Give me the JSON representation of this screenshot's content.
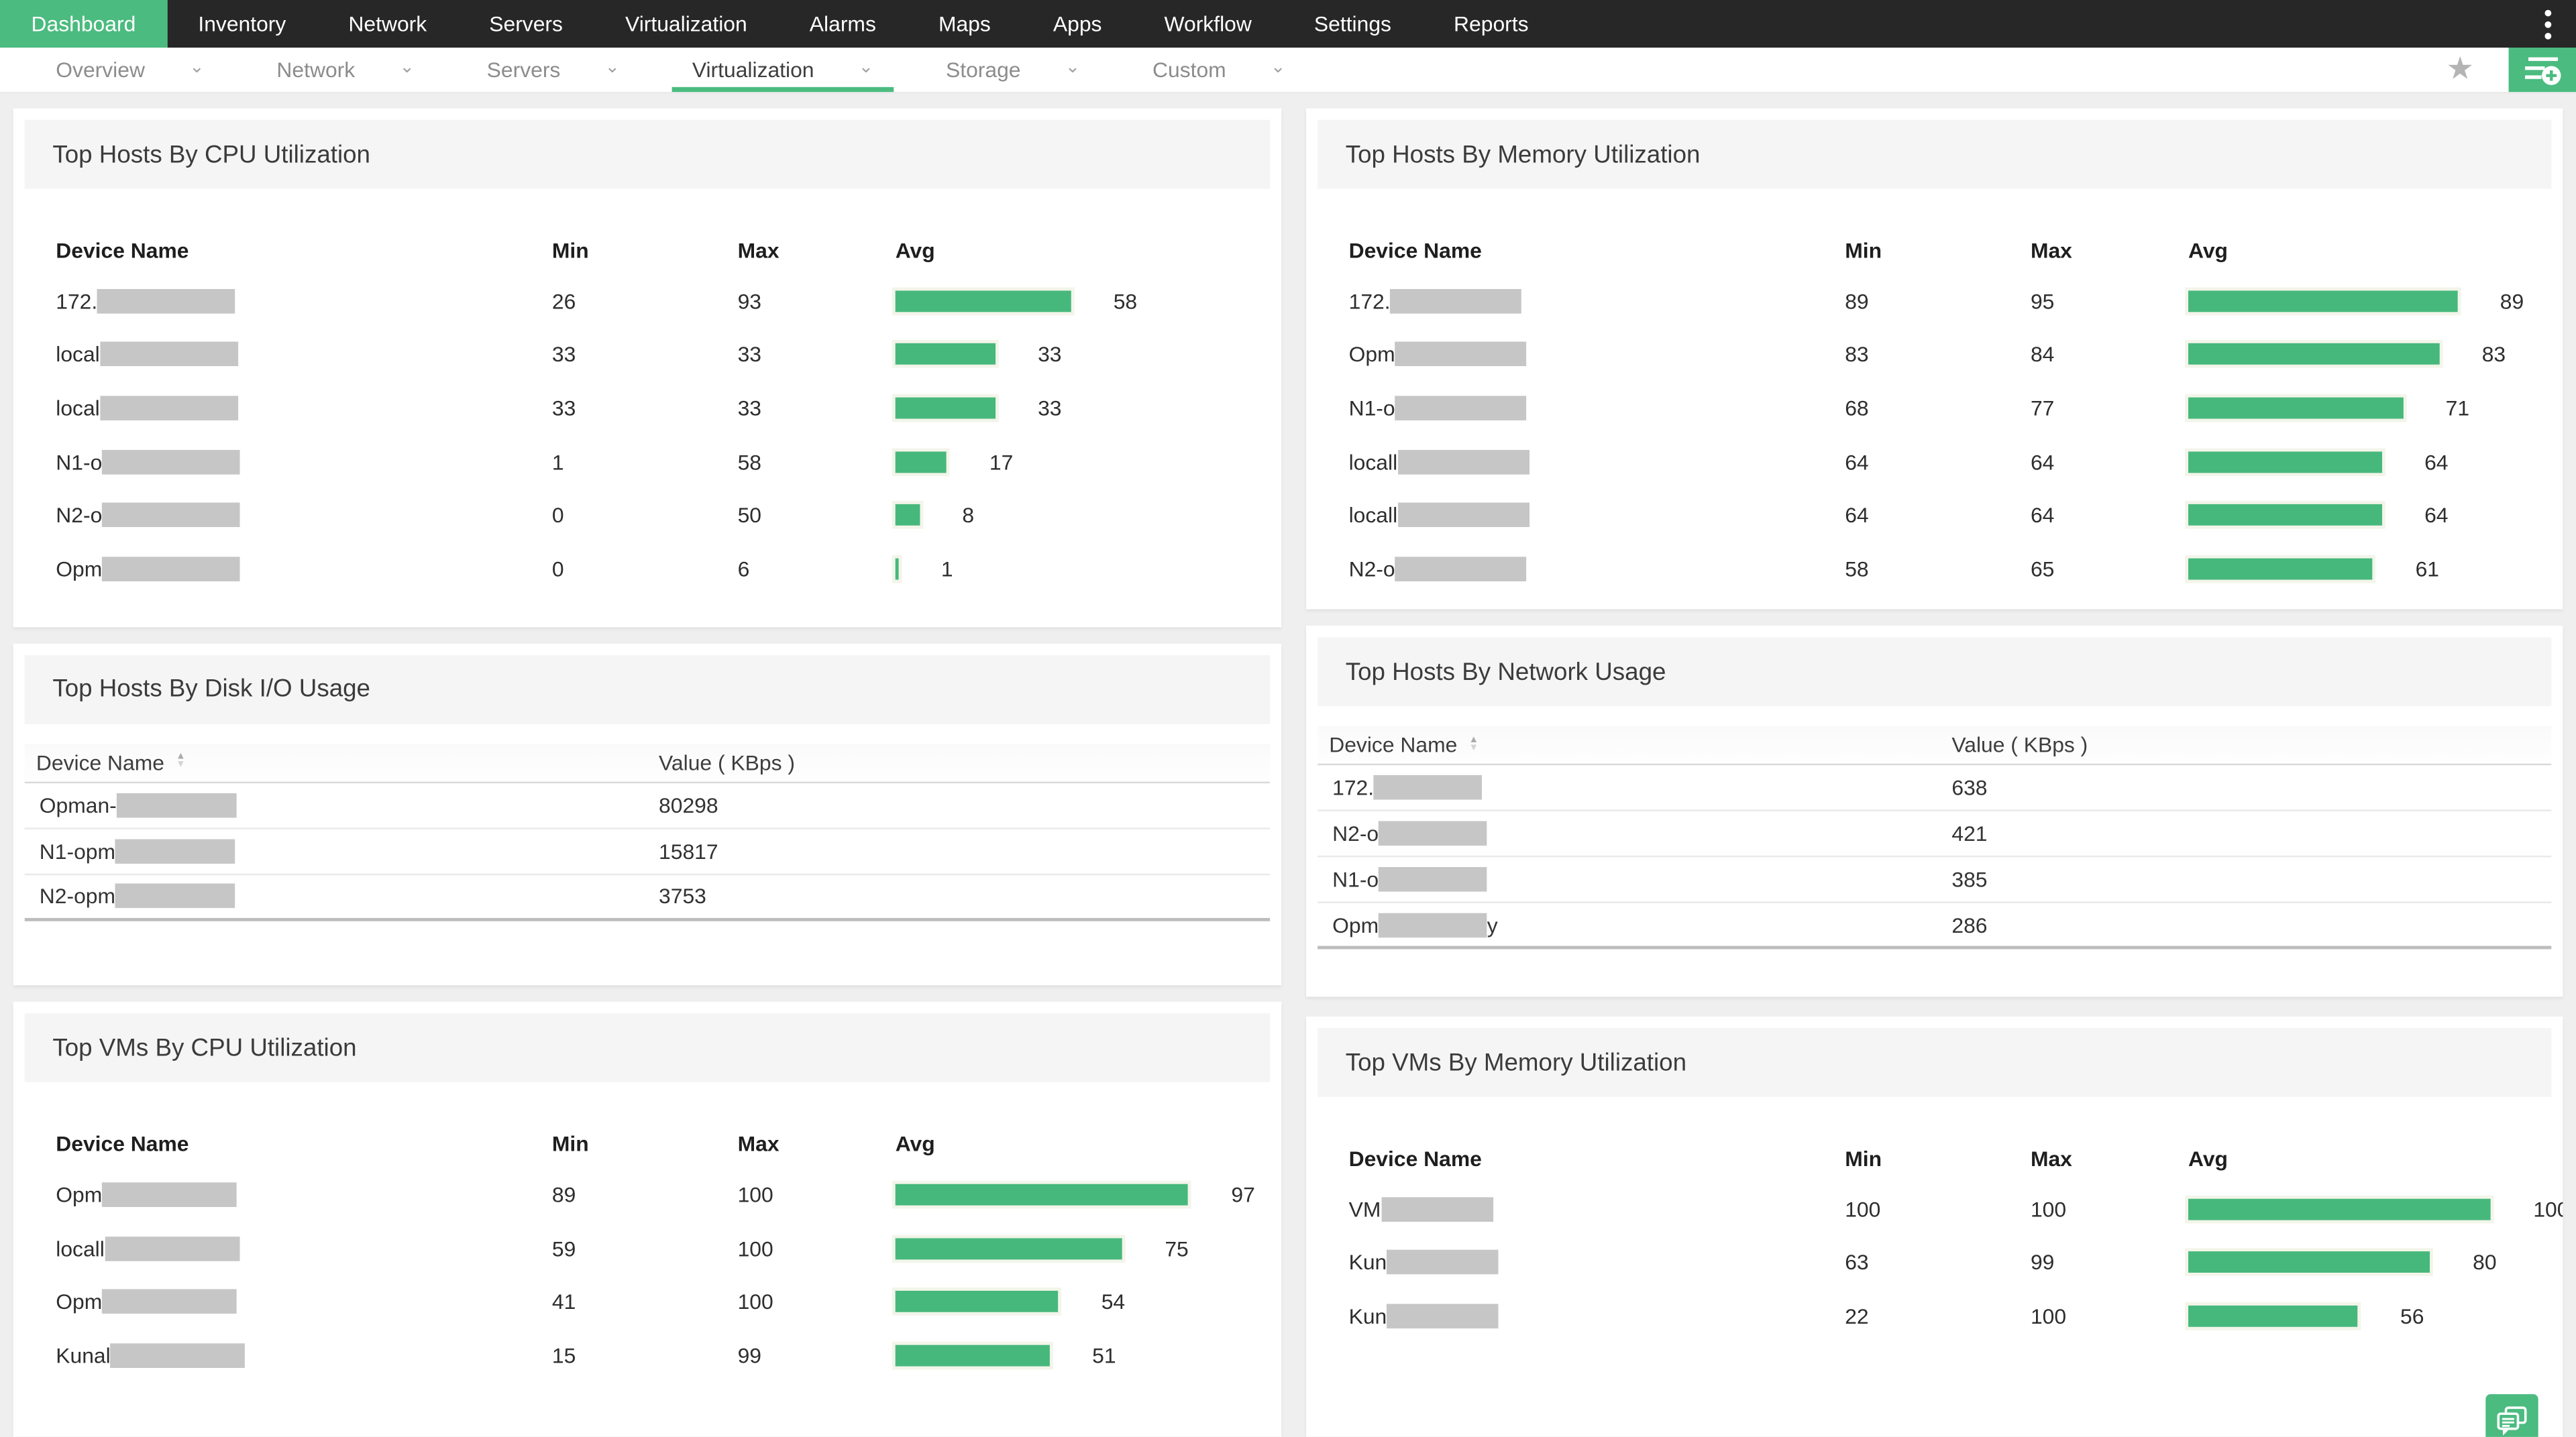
{
  "topnav": {
    "items": [
      {
        "label": "Dashboard",
        "active": true
      },
      {
        "label": "Inventory"
      },
      {
        "label": "Network"
      },
      {
        "label": "Servers"
      },
      {
        "label": "Virtualization"
      },
      {
        "label": "Alarms"
      },
      {
        "label": "Maps"
      },
      {
        "label": "Apps"
      },
      {
        "label": "Workflow"
      },
      {
        "label": "Settings"
      },
      {
        "label": "Reports"
      }
    ]
  },
  "subnav": {
    "items": [
      {
        "label": "Overview"
      },
      {
        "label": "Network"
      },
      {
        "label": "Servers"
      },
      {
        "label": "Virtualization",
        "active": true
      },
      {
        "label": "Storage"
      },
      {
        "label": "Custom"
      }
    ]
  },
  "icons": {
    "kebab-menu-icon": "vertical three dots",
    "chevron-down-icon": "⌄",
    "favorite-star-icon": "★",
    "sort-up-icon": "▲",
    "sort-down-icon": "▼",
    "add-widget-icon": "list with plus circle",
    "chat-bubbles-icon": "two speech bubbles"
  },
  "colors": {
    "nav_bg": "#272727",
    "accent_green": "#4bbb7f",
    "bar_green": "#47b87c",
    "page_bg": "#efeff0",
    "panel_band": "#f5f5f6",
    "redact_gray": "#c6c6c6"
  },
  "panels": {
    "cpu_hosts": {
      "title": "Top Hosts By CPU Utilization",
      "columns": [
        "Device Name",
        "Min",
        "Max",
        "Avg"
      ],
      "redact_w": 84,
      "rows": [
        {
          "prefix": "172.",
          "min": "26",
          "max": "93",
          "avg": 58
        },
        {
          "prefix": "local",
          "min": "33",
          "max": "33",
          "avg": 33
        },
        {
          "prefix": "local",
          "min": "33",
          "max": "33",
          "avg": 33
        },
        {
          "prefix": "N1-o",
          "min": "1",
          "max": "58",
          "avg": 17
        },
        {
          "prefix": "N2-o",
          "min": "0",
          "max": "50",
          "avg": 8
        },
        {
          "prefix": "Opm",
          "min": "0",
          "max": "6",
          "avg": 1
        }
      ]
    },
    "mem_hosts": {
      "title": "Top Hosts By Memory Utilization",
      "columns": [
        "Device Name",
        "Min",
        "Max",
        "Avg"
      ],
      "redact_w": 80,
      "rows": [
        {
          "prefix": "172.",
          "min": "89",
          "max": "95",
          "avg": 89
        },
        {
          "prefix": "Opm",
          "min": "83",
          "max": "84",
          "avg": 83
        },
        {
          "prefix": "N1-o",
          "min": "68",
          "max": "77",
          "avg": 71
        },
        {
          "prefix": "locall",
          "min": "64",
          "max": "64",
          "avg": 64
        },
        {
          "prefix": "locall",
          "min": "64",
          "max": "64",
          "avg": 64
        },
        {
          "prefix": "N2-o",
          "min": "58",
          "max": "65",
          "avg": 61
        }
      ]
    },
    "disk_hosts": {
      "title": "Top Hosts By Disk I/O Usage",
      "columns": [
        "Device Name",
        "Value ( KBps )"
      ],
      "redact_w": 73,
      "rows": [
        {
          "prefix": "Opman-",
          "value": "80298"
        },
        {
          "prefix": "N1-opm",
          "value": "15817"
        },
        {
          "prefix": "N2-opm",
          "value": "3753"
        }
      ]
    },
    "net_hosts": {
      "title": "Top Hosts By Network Usage",
      "columns": [
        "Device Name",
        "Value ( KBps )"
      ],
      "redact_w": 66,
      "rows": [
        {
          "prefix": "172.",
          "value": "638"
        },
        {
          "prefix": "N2-o",
          "value": "421"
        },
        {
          "prefix": "N1-o",
          "value": "385"
        },
        {
          "prefix": "Opm",
          "suffix": "y",
          "value": "286"
        }
      ]
    },
    "cpu_vms": {
      "title": "Top VMs By CPU Utilization",
      "columns": [
        "Device Name",
        "Min",
        "Max",
        "Avg"
      ],
      "redact_w": 82,
      "rows": [
        {
          "prefix": "Opm",
          "min": "89",
          "max": "100",
          "avg": 97
        },
        {
          "prefix": "locall",
          "min": "59",
          "max": "100",
          "avg": 75
        },
        {
          "prefix": "Opm",
          "min": "41",
          "max": "100",
          "avg": 54
        },
        {
          "prefix": "Kunal",
          "min": "15",
          "max": "99",
          "avg": 51
        }
      ]
    },
    "mem_vms": {
      "title": "Top VMs By Memory Utilization",
      "columns": [
        "Device Name",
        "Min",
        "Max",
        "Avg"
      ],
      "redact_w": 68,
      "rows": [
        {
          "prefix": "VM",
          "min": "100",
          "max": "100",
          "avg": 100
        },
        {
          "prefix": "Kun",
          "min": "63",
          "max": "99",
          "avg": 80
        },
        {
          "prefix": "Kun",
          "min": "22",
          "max": "100",
          "avg": 56
        }
      ]
    }
  }
}
